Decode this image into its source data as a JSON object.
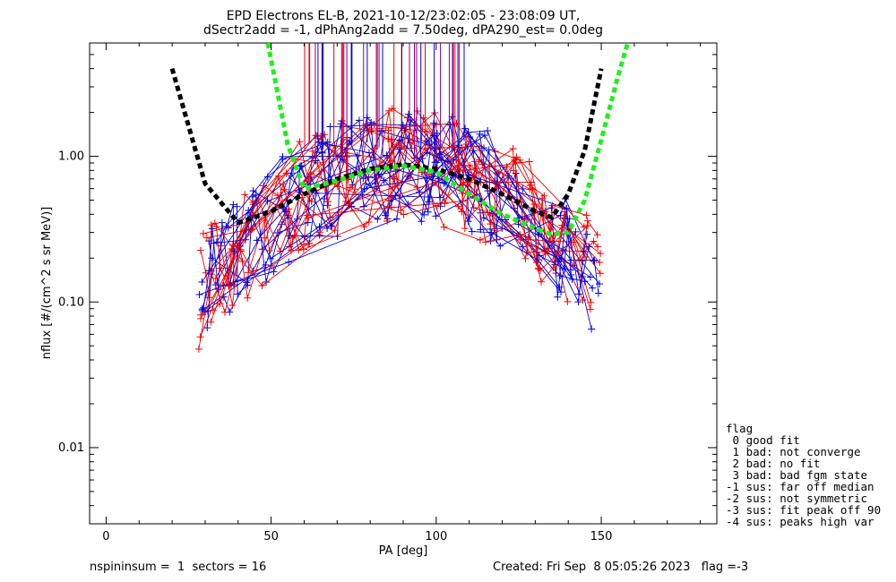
{
  "chart_data": {
    "type": "scatter",
    "title_line1": "EPD Electrons EL-B, 2021-10-12/23:02:05 - 23:08:09 UT,",
    "title_line2": "dSectr2add = -1, dPhAng2add = 7.50deg, dPA290_est=   0.0deg",
    "xlabel": "PA [deg]",
    "ylabel": "nflux [#/(cm^2 s sr MeV)]",
    "xlim": [
      -5,
      185
    ],
    "ylim": [
      0.003,
      6.0
    ],
    "yscale": "log",
    "x_ticks": [
      "0",
      "50",
      "100",
      "150"
    ],
    "y_ticks": [
      "0.01",
      "0.10",
      "1.00"
    ],
    "grid": false,
    "series": [],
    "fits": [
      {
        "color": "#000000",
        "x": [
          20,
          30,
          40,
          50,
          60,
          70,
          80,
          90,
          100,
          110,
          120,
          130,
          135,
          140,
          145,
          150
        ],
        "y": [
          4.0,
          0.65,
          0.35,
          0.42,
          0.55,
          0.7,
          0.82,
          0.88,
          0.82,
          0.7,
          0.55,
          0.42,
          0.38,
          0.55,
          1.1,
          4.0
        ]
      },
      {
        "color": "#22ee22",
        "x": [
          49,
          55,
          60,
          70,
          80,
          90,
          100,
          110,
          120,
          130,
          135,
          140,
          145,
          150,
          155,
          158
        ],
        "y": [
          6.0,
          1.2,
          0.6,
          0.68,
          0.8,
          0.86,
          0.78,
          0.55,
          0.4,
          0.32,
          0.29,
          0.3,
          0.5,
          1.3,
          3.5,
          6.0
        ]
      }
    ],
    "legend": {
      "title": "flag",
      "entries": [
        " 0 good fit",
        " 1 bad: not converge",
        " 2 bad: no fit",
        " 3 bad: bad fgm state",
        "-1 sus: far off median",
        "-2 sus: not symmetric",
        "-3 sus: fit peak off 90",
        "-4 sus: peaks high var"
      ],
      "placement": "right"
    }
  },
  "footer": {
    "left": "nspininsum =  1  sectors = 16",
    "right": "Created: Fri Sep  8 05:05:26 2023   flag =-3"
  },
  "colors": {
    "red": "#ee0000",
    "blue": "#0000dd",
    "purple": "#880088",
    "fit_black": "#000000",
    "fit_green": "#22ee22"
  }
}
